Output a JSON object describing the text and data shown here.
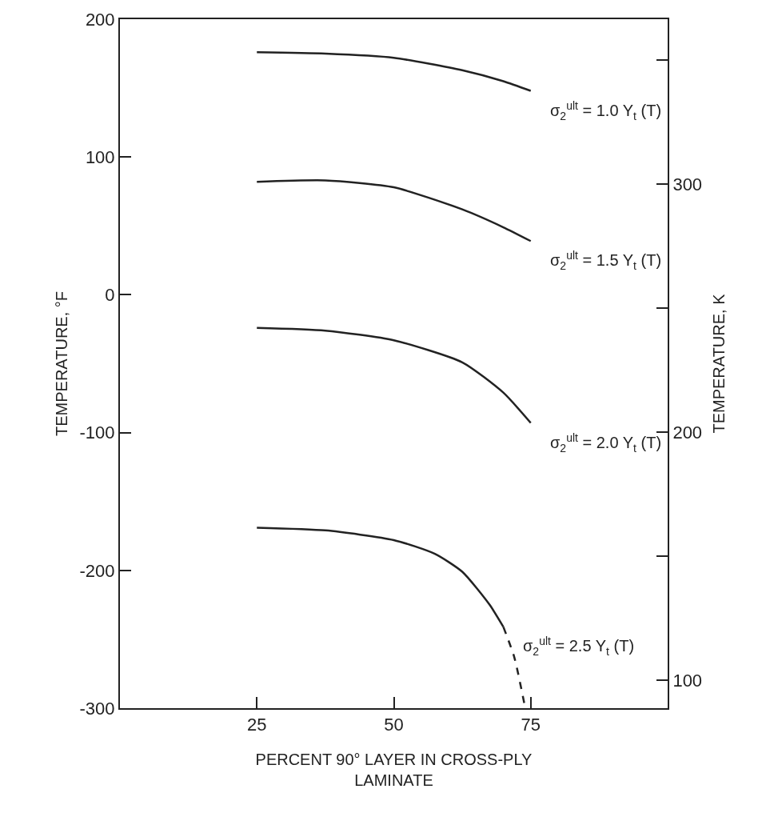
{
  "chart_data": {
    "type": "line",
    "xlabel": "PERCENT 90° LAYER IN CROSS-PLY\nLAMINATE",
    "ylabel": "TEMPERATURE, °F",
    "y2label": "TEMPERATURE, K",
    "xlim": [
      0,
      100
    ],
    "xticks": [
      {
        "value": 25,
        "label": "25"
      },
      {
        "value": 50,
        "label": "50"
      },
      {
        "value": 75,
        "label": "75"
      }
    ],
    "ylim": [
      -300,
      200
    ],
    "yticks": [
      -300,
      -200,
      -100,
      0,
      100,
      200
    ],
    "y2lim": [
      88.7,
      366.5
    ],
    "y2ticks": [
      {
        "value": 100,
        "label": "100"
      },
      {
        "value": 150,
        "label": null
      },
      {
        "value": 200,
        "label": "200"
      },
      {
        "value": 250,
        "label": null
      },
      {
        "value": 300,
        "label": "300"
      },
      {
        "value": 350,
        "label": null
      }
    ],
    "legend": false,
    "marker": "none",
    "series": [
      {
        "name": "σ$_{2}$$^{ult}$ = 1.0 Y$_{t}$ (T)",
        "color": "#222222",
        "line_style": "solid",
        "x": [
          25,
          37.5,
          50,
          62.5,
          70,
          75
        ],
        "values": [
          176,
          175,
          172,
          163,
          155,
          148
        ]
      },
      {
        "name": "σ$_{2}$$^{ult}$ = 1.5 Y$_{t}$ (T)",
        "color": "#222222",
        "line_style": "solid",
        "x": [
          25,
          37.5,
          50,
          62.5,
          70,
          75
        ],
        "values": [
          82,
          83,
          78,
          62,
          49,
          39
        ]
      },
      {
        "name": "σ$_{2}$$^{ult}$ = 2.0 Y$_{t}$ (T)",
        "color": "#222222",
        "line_style": "solid",
        "x": [
          25,
          37.5,
          50,
          62.5,
          70,
          75
        ],
        "values": [
          -24,
          -26,
          -33,
          -49,
          -71,
          -93
        ]
      },
      {
        "name": "σ$_{2}$$^{ult}$ = 2.5 Y$_{t}$ (T)",
        "color": "#222222",
        "line_style": "solid",
        "x": [
          25,
          37.5,
          50,
          57.5,
          62.5,
          67.5,
          70
        ],
        "values": [
          -169,
          -171,
          -178,
          -188,
          -201,
          -225,
          -241
        ]
      },
      {
        "color": "#222222",
        "line_style": "dashed",
        "x": [
          70,
          72,
          74
        ],
        "values": [
          -241,
          -263,
          -300
        ]
      }
    ]
  }
}
